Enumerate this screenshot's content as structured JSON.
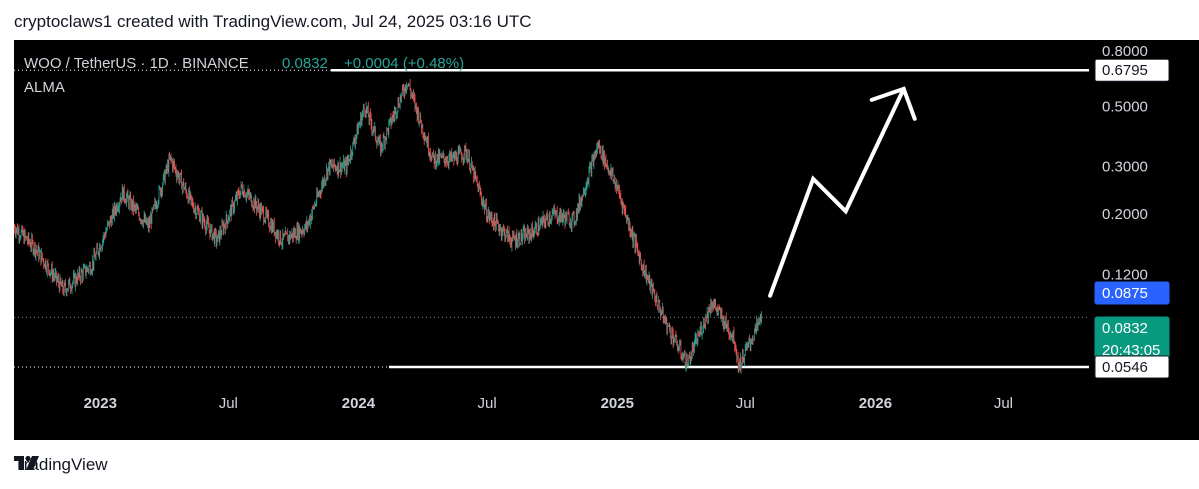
{
  "header": {
    "text": "cryptoclaws1 created with TradingView.com, Jul 24, 2025 03:16 UTC"
  },
  "legend": {
    "symbol": "WOO / TetherUS · 1D · BINANCE",
    "price": "0.0832",
    "change": "+0.0004 (+0.48%)",
    "indicator": "ALMA"
  },
  "footer": {
    "brand": "TradingView"
  },
  "colors": {
    "background": "#000000",
    "up": "#26a69a",
    "down": "#ef5350",
    "current_price_label": "#089981",
    "alma_label": "#2962ff",
    "annotation": "#ffffff"
  },
  "chart_data": {
    "type": "candlestick",
    "scale": "log",
    "y_ticks": [
      "0.8000",
      "0.5000",
      "0.3000",
      "0.2000",
      "0.1200"
    ],
    "x_ticks": [
      "2023",
      "Jul",
      "2024",
      "Jul",
      "2025",
      "Jul",
      "2026",
      "Jul"
    ],
    "price_labels": [
      {
        "text": "0.6795",
        "kind": "level"
      },
      {
        "text": "0.0875",
        "kind": "alma"
      },
      {
        "text": "0.0832",
        "sub": "20:43:05",
        "kind": "current"
      },
      {
        "text": "0.0546",
        "kind": "level"
      }
    ],
    "horizontal_levels": [
      0.6795,
      0.0546
    ],
    "price_path": [
      [
        "2022-09-01",
        0.18
      ],
      [
        "2022-10-01",
        0.15
      ],
      [
        "2022-11-10",
        0.105
      ],
      [
        "2022-12-20",
        0.13
      ],
      [
        "2023-02-01",
        0.24
      ],
      [
        "2023-03-10",
        0.18
      ],
      [
        "2023-04-10",
        0.32
      ],
      [
        "2023-05-10",
        0.22
      ],
      [
        "2023-06-15",
        0.16
      ],
      [
        "2023-07-20",
        0.25
      ],
      [
        "2023-08-20",
        0.2
      ],
      [
        "2023-09-15",
        0.16
      ],
      [
        "2023-10-20",
        0.18
      ],
      [
        "2023-11-20",
        0.3
      ],
      [
        "2023-12-15",
        0.3
      ],
      [
        "2024-01-10",
        0.5
      ],
      [
        "2024-02-01",
        0.35
      ],
      [
        "2024-03-10",
        0.62
      ],
      [
        "2024-04-15",
        0.32
      ],
      [
        "2024-05-15",
        0.32
      ],
      [
        "2024-06-01",
        0.34
      ],
      [
        "2024-07-01",
        0.2
      ],
      [
        "2024-08-05",
        0.16
      ],
      [
        "2024-09-01",
        0.17
      ],
      [
        "2024-10-01",
        0.2
      ],
      [
        "2024-11-01",
        0.19
      ],
      [
        "2024-12-05",
        0.36
      ],
      [
        "2025-01-01",
        0.25
      ],
      [
        "2025-02-05",
        0.13
      ],
      [
        "2025-03-10",
        0.08
      ],
      [
        "2025-04-10",
        0.056
      ],
      [
        "2025-05-15",
        0.095
      ],
      [
        "2025-06-15",
        0.07
      ],
      [
        "2025-06-22",
        0.055
      ],
      [
        "2025-07-24",
        0.0832
      ]
    ],
    "projection_path": [
      [
        "2025-08-05",
        0.1
      ],
      [
        "2025-10-05",
        0.27
      ],
      [
        "2025-11-20",
        0.205
      ],
      [
        "2026-02-10",
        0.58
      ]
    ]
  }
}
